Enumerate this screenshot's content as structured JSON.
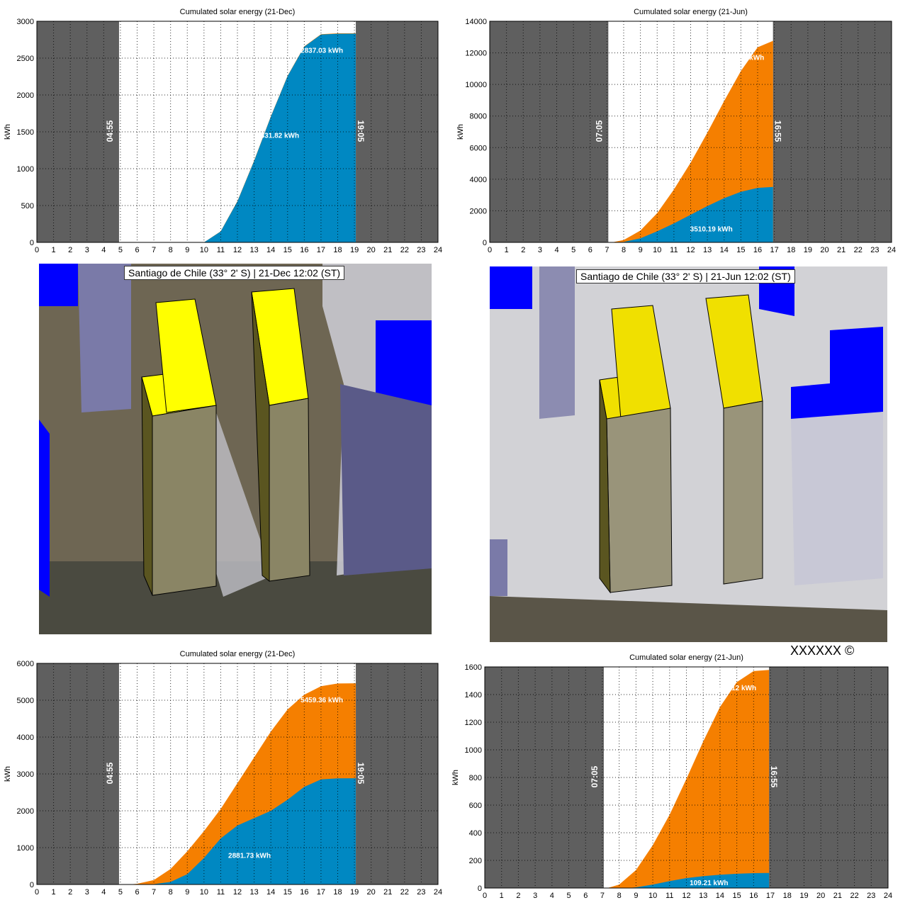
{
  "colors": {
    "orange": "#f57f00",
    "blue": "#0088c2",
    "night": "#5f5f5f",
    "building_target": "#ffff00",
    "building_other": "#0000ff"
  },
  "chart_data": [
    {
      "type": "area",
      "title": "Cumulated solar energy (21-Dec)",
      "ylabel": "kWh",
      "xlim": [
        0,
        24
      ],
      "ylim": [
        0,
        3000
      ],
      "yticks": [
        0,
        500,
        1000,
        1500,
        2000,
        2500,
        3000
      ],
      "xticks": [
        0,
        1,
        2,
        3,
        4,
        5,
        6,
        7,
        8,
        9,
        10,
        11,
        12,
        13,
        14,
        15,
        16,
        17,
        18,
        19,
        20,
        21,
        22,
        23,
        24
      ],
      "grid": true,
      "sunrise": "04:55",
      "sunset": "19:05",
      "series": [
        {
          "color": "orange",
          "x": [
            10,
            11,
            12,
            13,
            14,
            15,
            16,
            17,
            18,
            19.08
          ],
          "y": [
            0,
            150,
            560,
            1110,
            1710,
            2260,
            2660,
            2825,
            2837,
            2837.03
          ],
          "label": "2837.03 kWh"
        },
        {
          "color": "blue",
          "x": [
            10,
            11,
            12,
            13,
            14,
            15,
            16,
            17,
            18,
            19.08
          ],
          "y": [
            0,
            148,
            555,
            1105,
            1705,
            2255,
            2655,
            2820,
            2831,
            2831.82
          ],
          "label": "2831.82 kWh"
        }
      ]
    },
    {
      "type": "area",
      "title": "Cumulated solar energy (21-Jun)",
      "ylabel": "kWh",
      "xlim": [
        0,
        24
      ],
      "ylim": [
        0,
        14000
      ],
      "yticks": [
        0,
        2000,
        4000,
        6000,
        8000,
        10000,
        12000,
        14000
      ],
      "xticks": [
        0,
        1,
        2,
        3,
        4,
        5,
        6,
        7,
        8,
        9,
        10,
        11,
        12,
        13,
        14,
        15,
        16,
        17,
        18,
        19,
        20,
        21,
        22,
        23,
        24
      ],
      "grid": true,
      "sunrise": "07:05",
      "sunset": "16:55",
      "series": [
        {
          "color": "orange",
          "x": [
            7.3,
            8,
            9,
            10,
            11,
            12,
            13,
            14,
            15,
            16,
            16.92
          ],
          "y": [
            0,
            150,
            750,
            1850,
            3350,
            5050,
            6950,
            8950,
            10850,
            12350,
            12760.15
          ],
          "label": "12760.15 kWh"
        },
        {
          "color": "blue",
          "x": [
            7.3,
            8,
            9,
            10,
            11,
            12,
            13,
            14,
            15,
            16,
            16.92
          ],
          "y": [
            0,
            30,
            260,
            700,
            1200,
            1750,
            2300,
            2800,
            3200,
            3450,
            3510.19
          ],
          "label": "3510.19 kWh"
        }
      ]
    },
    {
      "type": "area",
      "title": "Cumulated solar energy (21-Dec)",
      "ylabel": "kWh",
      "xlim": [
        0,
        24
      ],
      "ylim": [
        0,
        6000
      ],
      "yticks": [
        0,
        1000,
        2000,
        3000,
        4000,
        5000,
        6000
      ],
      "xticks": [
        0,
        1,
        2,
        3,
        4,
        5,
        6,
        7,
        8,
        9,
        10,
        11,
        12,
        13,
        14,
        15,
        16,
        17,
        18,
        19,
        20,
        21,
        22,
        23,
        24
      ],
      "grid": true,
      "sunrise": "04:55",
      "sunset": "19:05",
      "series": [
        {
          "color": "orange",
          "x": [
            5.5,
            6,
            7,
            8,
            9,
            10,
            11,
            12,
            13,
            14,
            15,
            16,
            17,
            18,
            19.08
          ],
          "y": [
            0,
            20,
            120,
            420,
            900,
            1450,
            2050,
            2750,
            3450,
            4150,
            4750,
            5150,
            5380,
            5455,
            5459.36
          ],
          "label": "5459.36 kWh"
        },
        {
          "color": "blue",
          "x": [
            6.8,
            7,
            8,
            9,
            10,
            11,
            12,
            13,
            14,
            15,
            16,
            17,
            18,
            19.08
          ],
          "y": [
            0,
            10,
            70,
            280,
            720,
            1250,
            1600,
            1800,
            2000,
            2300,
            2650,
            2850,
            2880,
            2881.73
          ],
          "label": "2881.73 kWh"
        }
      ]
    },
    {
      "type": "area",
      "title": "Cumulated solar energy (21-Jun)",
      "ylabel": "kWh",
      "xlim": [
        0,
        24
      ],
      "ylim": [
        0,
        1600
      ],
      "yticks": [
        0,
        200,
        400,
        600,
        800,
        1000,
        1200,
        1400,
        1600
      ],
      "xticks": [
        0,
        1,
        2,
        3,
        4,
        5,
        6,
        7,
        8,
        9,
        10,
        11,
        12,
        13,
        14,
        15,
        16,
        17,
        18,
        19,
        20,
        21,
        22,
        23,
        24
      ],
      "grid": true,
      "sunrise": "07:05",
      "sunset": "16:55",
      "series": [
        {
          "color": "orange",
          "x": [
            7.3,
            8,
            9,
            10,
            11,
            12,
            13,
            14,
            15,
            16,
            16.92
          ],
          "y": [
            0,
            25,
            130,
            310,
            530,
            790,
            1060,
            1310,
            1490,
            1570,
            1578.12
          ],
          "label": "1578.12 kWh"
        },
        {
          "color": "blue",
          "x": [
            8.5,
            9,
            10,
            11,
            12,
            13,
            14,
            15,
            16,
            16.92
          ],
          "y": [
            0,
            5,
            25,
            50,
            72,
            86,
            96,
            103,
            108,
            109.21
          ],
          "label": "109.21 kWh"
        }
      ]
    }
  ],
  "scenes": [
    {
      "caption": "Santiago de Chile (33° 2' S) | 21-Dec 12:02 (ST)"
    },
    {
      "caption": "Santiago de Chile (33° 2' S) | 21-Jun 12:02 (ST)"
    }
  ],
  "copyright": "XXXXXX ©"
}
